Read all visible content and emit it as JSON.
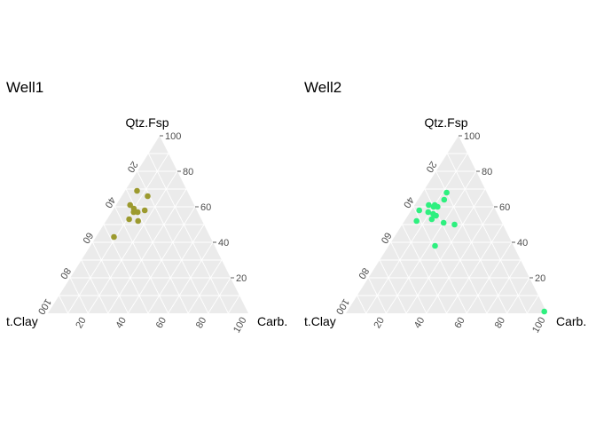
{
  "chart_data": [
    {
      "type": "scatter",
      "subtype": "ternary",
      "title": "Well1",
      "axes": {
        "top": "Qtz.Fsp",
        "left": "t.Clay",
        "right": "Carb."
      },
      "ticks": [
        "20",
        "40",
        "60",
        "80",
        "100"
      ],
      "tick_values": [
        20,
        40,
        60,
        80,
        100
      ],
      "range": [
        0,
        100
      ],
      "grid": true,
      "point_color": "#9C9A2E",
      "points": [
        {
          "qtz_fsp": 69,
          "t_clay": 25,
          "carb": 6
        },
        {
          "qtz_fsp": 66,
          "t_clay": 21,
          "carb": 13
        },
        {
          "qtz_fsp": 61,
          "t_clay": 32,
          "carb": 7
        },
        {
          "qtz_fsp": 59,
          "t_clay": 31,
          "carb": 10
        },
        {
          "qtz_fsp": 57,
          "t_clay": 32,
          "carb": 11
        },
        {
          "qtz_fsp": 57,
          "t_clay": 30,
          "carb": 13
        },
        {
          "qtz_fsp": 58,
          "t_clay": 26,
          "carb": 16
        },
        {
          "qtz_fsp": 53,
          "t_clay": 36,
          "carb": 11
        },
        {
          "qtz_fsp": 52,
          "t_clay": 32,
          "carb": 16
        },
        {
          "qtz_fsp": 43,
          "t_clay": 48,
          "carb": 9
        }
      ]
    },
    {
      "type": "scatter",
      "subtype": "ternary",
      "title": "Well2",
      "axes": {
        "top": "Qtz.Fsp",
        "left": "t.Clay",
        "right": "Carb."
      },
      "ticks": [
        "20",
        "40",
        "60",
        "80",
        "100"
      ],
      "tick_values": [
        20,
        40,
        60,
        80,
        100
      ],
      "range": [
        0,
        100
      ],
      "grid": true,
      "point_color": "#2EF07F",
      "points": [
        {
          "qtz_fsp": 68,
          "t_clay": 20,
          "carb": 12
        },
        {
          "qtz_fsp": 64,
          "t_clay": 23,
          "carb": 13
        },
        {
          "qtz_fsp": 61,
          "t_clay": 32,
          "carb": 7
        },
        {
          "qtz_fsp": 61,
          "t_clay": 29,
          "carb": 10
        },
        {
          "qtz_fsp": 60,
          "t_clay": 30,
          "carb": 10
        },
        {
          "qtz_fsp": 60,
          "t_clay": 28,
          "carb": 12
        },
        {
          "qtz_fsp": 58,
          "t_clay": 38,
          "carb": 4
        },
        {
          "qtz_fsp": 57,
          "t_clay": 34,
          "carb": 9
        },
        {
          "qtz_fsp": 56,
          "t_clay": 32,
          "carb": 12
        },
        {
          "qtz_fsp": 55,
          "t_clay": 31,
          "carb": 14
        },
        {
          "qtz_fsp": 53,
          "t_clay": 34,
          "carb": 13
        },
        {
          "qtz_fsp": 52,
          "t_clay": 42,
          "carb": 6
        },
        {
          "qtz_fsp": 51,
          "t_clay": 29,
          "carb": 20
        },
        {
          "qtz_fsp": 50,
          "t_clay": 24,
          "carb": 26
        },
        {
          "qtz_fsp": 38,
          "t_clay": 39,
          "carb": 23
        },
        {
          "qtz_fsp": 1,
          "t_clay": 1,
          "carb": 98
        }
      ]
    }
  ]
}
